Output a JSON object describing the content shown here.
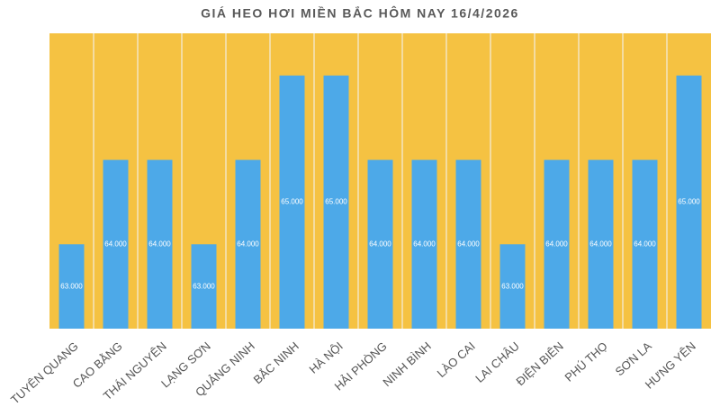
{
  "chart_data": {
    "type": "bar",
    "title": "GIÁ HEO HƠI MIỀN BẮC HÔM NAY 16/4/2026",
    "categories": [
      "TUYÊN QUANG",
      "CAO BẰNG",
      "THÁI NGUYÊN",
      "LẠNG SƠN",
      "QUẢNG NINH",
      "BẮC NINH",
      "HÀ NỘI",
      "HẢI PHÒNG",
      "NINH BÌNH",
      "LÀO CAI",
      "LAI CHÂU",
      "ĐIỆN BIÊN",
      "PHÚ THỌ",
      "SƠN LA",
      "HƯNG YÊN"
    ],
    "values": [
      63000,
      64000,
      64000,
      63000,
      64000,
      65000,
      65000,
      64000,
      64000,
      64000,
      63000,
      64000,
      64000,
      64000,
      65000
    ],
    "value_labels": [
      "63.000",
      "64.000",
      "64.000",
      "63.000",
      "64.000",
      "65.000",
      "65.000",
      "64.000",
      "64.000",
      "64.000",
      "63.000",
      "64.000",
      "64.000",
      "64.000",
      "65.000"
    ],
    "color": "#4da9e8",
    "plot_background": "#f5c242",
    "ylim": [
      62000,
      65500
    ]
  }
}
